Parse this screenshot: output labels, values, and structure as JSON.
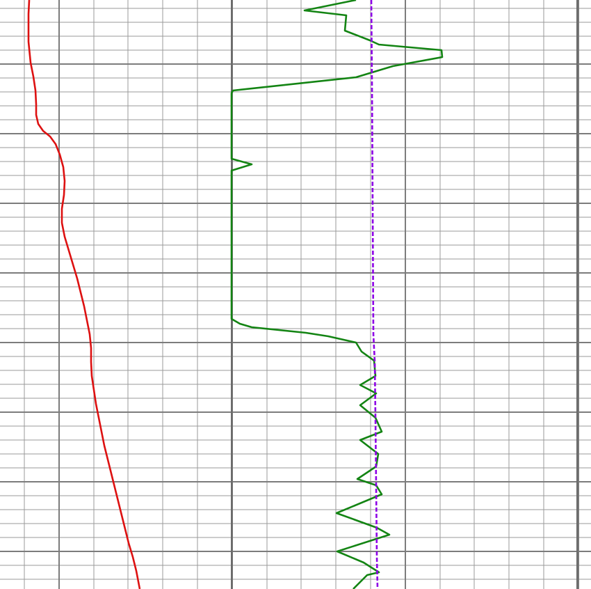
{
  "chart_data": {
    "type": "line",
    "grid": true,
    "colors": {
      "background": "#ffffff",
      "grid_minor": "#9a9a9a",
      "grid_major": "#7c7c7c",
      "track_border": "#6b6b6b"
    },
    "tracks": [
      {
        "id": "track-1",
        "grid_spacing": "linear",
        "series": [
          {
            "color": "#dd1111",
            "style": "solid",
            "points": [
              [
                42,
                0
              ],
              [
                41,
                20
              ],
              [
                41,
                60
              ],
              [
                44,
                90
              ],
              [
                48,
                110
              ],
              [
                51,
                130
              ],
              [
                52,
                150
              ],
              [
                52,
                165
              ],
              [
                55,
                178
              ],
              [
                62,
                188
              ],
              [
                72,
                196
              ],
              [
                80,
                207
              ],
              [
                86,
                222
              ],
              [
                91,
                240
              ],
              [
                93,
                260
              ],
              [
                92,
                280
              ],
              [
                89,
                300
              ],
              [
                89,
                320
              ],
              [
                93,
                340
              ],
              [
                99,
                360
              ],
              [
                105,
                380
              ],
              [
                111,
                400
              ],
              [
                116,
                420
              ],
              [
                121,
                440
              ],
              [
                125,
                460
              ],
              [
                129,
                480
              ],
              [
                131,
                500
              ],
              [
                131,
                520
              ],
              [
                132,
                540
              ],
              [
                135,
                560
              ],
              [
                138,
                580
              ],
              [
                142,
                600
              ],
              [
                146,
                620
              ],
              [
                150,
                640
              ],
              [
                155,
                660
              ],
              [
                160,
                680
              ],
              [
                165,
                700
              ],
              [
                170,
                720
              ],
              [
                175,
                740
              ],
              [
                180,
                760
              ],
              [
                185,
                780
              ],
              [
                191,
                800
              ],
              [
                196,
                820
              ],
              [
                201,
                846
              ]
            ]
          }
        ]
      },
      {
        "id": "track-2",
        "grid_spacing": "linear",
        "series": [
          {
            "color": "#138413",
            "style": "solid",
            "points": [
              [
                512,
                0
              ],
              [
                438,
                15
              ],
              [
                498,
                22
              ],
              [
                496,
                44
              ],
              [
                532,
                58
              ],
              [
                545,
                64
              ],
              [
                635,
                72
              ],
              [
                636,
                82
              ],
              [
                565,
                95
              ],
              [
                512,
                111
              ],
              [
                335,
                130
              ],
              [
                333,
                134
              ],
              [
                333,
                228
              ],
              [
                362,
                236
              ],
              [
                333,
                245
              ],
              [
                333,
                458
              ],
              [
                345,
                465
              ],
              [
                362,
                470
              ],
              [
                440,
                478
              ],
              [
                472,
                483
              ],
              [
                512,
                492
              ],
              [
                520,
                505
              ],
              [
                538,
                518
              ],
              [
                540,
                540
              ],
              [
                518,
                553
              ],
              [
                541,
                565
              ],
              [
                518,
                582
              ],
              [
                540,
                600
              ],
              [
                549,
                620
              ],
              [
                518,
                632
              ],
              [
                544,
                652
              ],
              [
                541,
                670
              ],
              [
                514,
                688
              ],
              [
                541,
                697
              ],
              [
                549,
                710
              ],
              [
                484,
                737
              ],
              [
                542,
                758
              ],
              [
                560,
                768
              ],
              [
                485,
                792
              ],
              [
                523,
                808
              ],
              [
                545,
                822
              ],
              [
                528,
                826
              ],
              [
                508,
                846
              ]
            ]
          },
          {
            "color": "#8d00e6",
            "style": "dashed",
            "points": [
              [
                534,
                0
              ],
              [
                535,
                120
              ],
              [
                536,
                300
              ],
              [
                537,
                480
              ],
              [
                539,
                520
              ],
              [
                540,
                600
              ],
              [
                541,
                700
              ],
              [
                542,
                800
              ],
              [
                543,
                846
              ]
            ]
          }
        ]
      }
    ]
  }
}
